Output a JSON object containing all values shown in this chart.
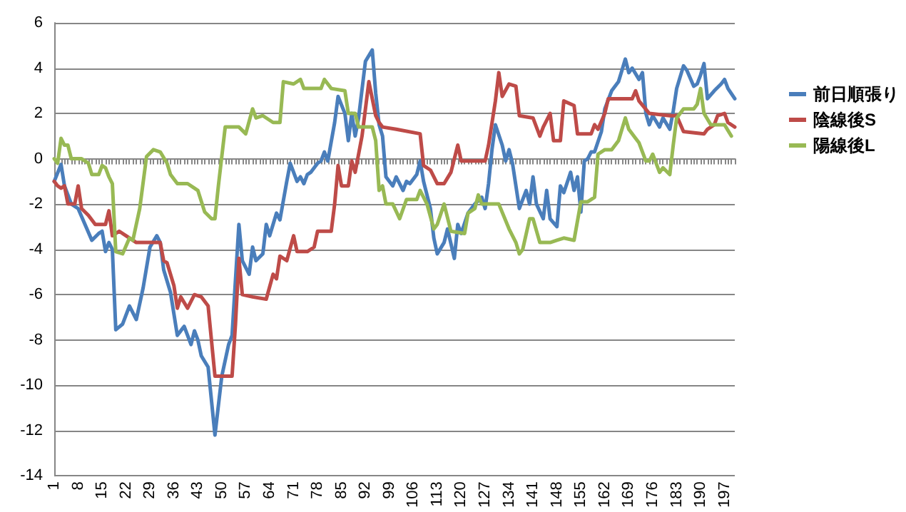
{
  "chart_data": {
    "type": "line",
    "xlim": [
      1,
      200
    ],
    "xticks": [
      1,
      8,
      15,
      22,
      29,
      36,
      43,
      50,
      57,
      64,
      71,
      78,
      85,
      92,
      99,
      106,
      113,
      120,
      127,
      134,
      141,
      148,
      155,
      162,
      169,
      176,
      183,
      190,
      197
    ],
    "ylim": [
      -14,
      6
    ],
    "yticks": [
      -14,
      -12,
      -10,
      -8,
      -6,
      -4,
      -2,
      0,
      2,
      4,
      6
    ],
    "grid": "y",
    "legend": "right",
    "marker": "none",
    "line_style": "solid",
    "series": [
      {
        "name": "前日順張り",
        "color": "#4a7ebb",
        "x": [
          1,
          3,
          4,
          6,
          8,
          10,
          12,
          14,
          15,
          16,
          17,
          18,
          19,
          21,
          23,
          25,
          27,
          29,
          31,
          32,
          33,
          35,
          37,
          39,
          41,
          42,
          43,
          44,
          46,
          48,
          50,
          52,
          53,
          55,
          56,
          58,
          59,
          60,
          62,
          63,
          64,
          66,
          67,
          69,
          70,
          72,
          73,
          74,
          75,
          76,
          78,
          79,
          80,
          81,
          83,
          84,
          86,
          87,
          88,
          89,
          90,
          92,
          94,
          95,
          96,
          97,
          98,
          100,
          101,
          103,
          104,
          105,
          107,
          108,
          109,
          111,
          112,
          113,
          115,
          116,
          118,
          119,
          120,
          122,
          124,
          126,
          127,
          128,
          129,
          130,
          132,
          133,
          134,
          135,
          137,
          139,
          140,
          141,
          142,
          144,
          145,
          146,
          148,
          149,
          150,
          152,
          153,
          154,
          155,
          156,
          157,
          158,
          159,
          161,
          162,
          164,
          166,
          167,
          168,
          169,
          170,
          172,
          173,
          174,
          175,
          176,
          178,
          179,
          181,
          182,
          183,
          185,
          186,
          188,
          189,
          190,
          191,
          192,
          194,
          196,
          197,
          198,
          200
        ],
        "values": [
          -1.0,
          -0.25,
          -1.2,
          -2.0,
          -2.2,
          -2.9,
          -3.6,
          -3.3,
          -3.2,
          -4.1,
          -3.7,
          -4.0,
          -7.55,
          -7.3,
          -6.5,
          -7.1,
          -5.7,
          -3.9,
          -3.4,
          -3.7,
          -4.9,
          -5.9,
          -7.8,
          -7.4,
          -8.2,
          -7.6,
          -8.0,
          -8.7,
          -9.2,
          -12.2,
          -9.6,
          -8.2,
          -7.8,
          -2.9,
          -4.5,
          -5.1,
          -3.9,
          -4.5,
          -4.2,
          -2.9,
          -3.4,
          -2.4,
          -2.7,
          -1.0,
          -0.2,
          -1.0,
          -0.8,
          -1.1,
          -0.7,
          -0.6,
          -0.2,
          -0.1,
          0.3,
          -0.1,
          1.6,
          2.75,
          2.0,
          0.8,
          2.0,
          1.0,
          1.8,
          4.3,
          4.8,
          2.9,
          1.5,
          1.0,
          -0.8,
          -1.2,
          -0.8,
          -1.4,
          -1.0,
          -1.1,
          -0.7,
          -0.1,
          -1.0,
          -2.2,
          -3.5,
          -4.2,
          -3.7,
          -3.1,
          -4.4,
          -2.9,
          -3.3,
          -2.4,
          -2.0,
          -1.7,
          -2.2,
          -1.1,
          0.4,
          1.5,
          0.6,
          -0.1,
          0.4,
          -0.2,
          -2.2,
          -1.4,
          -2.0,
          -0.8,
          -2.0,
          -2.65,
          -1.4,
          -2.65,
          -3.0,
          -1.2,
          -1.5,
          -0.6,
          -1.4,
          -0.8,
          -2.35,
          -0.1,
          0,
          0.3,
          0.3,
          1.2,
          2.2,
          3.0,
          3.4,
          3.9,
          4.4,
          3.8,
          4.0,
          3.5,
          3.8,
          2.0,
          1.5,
          1.9,
          1.4,
          1.8,
          1.3,
          2.1,
          3.1,
          4.1,
          3.9,
          3.2,
          3.3,
          3.7,
          4.2,
          2.65,
          3.0,
          3.3,
          3.5,
          3.1,
          2.65
        ]
      },
      {
        "name": "陰線後S",
        "color": "#be4b48",
        "x": [
          1,
          2,
          3,
          4,
          5,
          7,
          8,
          9,
          11,
          13,
          16,
          17,
          18,
          20,
          22,
          25,
          32,
          33,
          34,
          36,
          37,
          38,
          40,
          42,
          44,
          46,
          48,
          53,
          54,
          55,
          56,
          59,
          63,
          65,
          66,
          67,
          69,
          71,
          72,
          75,
          77,
          78,
          82,
          83,
          84,
          85,
          87,
          88,
          89,
          91,
          92,
          93,
          95,
          96,
          97,
          101,
          108,
          109,
          111,
          113,
          115,
          117,
          119,
          120,
          127,
          128,
          130,
          131,
          132,
          134,
          136,
          137,
          141,
          143,
          144,
          146,
          147,
          149,
          150,
          153,
          154,
          158,
          159,
          160,
          162,
          163,
          170,
          171,
          172,
          175,
          181,
          183,
          185,
          191,
          192,
          194,
          195,
          197,
          198,
          200
        ],
        "values": [
          -1.0,
          -1.2,
          -1.3,
          -1.2,
          -2.0,
          -2.0,
          -1.2,
          -2.2,
          -2.5,
          -2.9,
          -2.9,
          -2.3,
          -3.4,
          -3.2,
          -3.4,
          -3.7,
          -3.7,
          -4.5,
          -4.6,
          -5.6,
          -6.6,
          -6.1,
          -6.6,
          -6.0,
          -6.1,
          -6.5,
          -9.6,
          -9.6,
          -7.3,
          -4.4,
          -6.0,
          -6.1,
          -6.2,
          -5.1,
          -5.3,
          -4.3,
          -4.5,
          -3.4,
          -4.1,
          -4.1,
          -3.9,
          -3.2,
          -3.2,
          -2.0,
          -0.3,
          -1.2,
          -1.2,
          -0.1,
          -0.6,
          1.0,
          2.2,
          3.4,
          1.9,
          1.6,
          1.4,
          1.3,
          1.1,
          -0.3,
          -0.5,
          -1.1,
          -1.1,
          -0.6,
          0.6,
          -0.1,
          -0.1,
          0.6,
          2.55,
          3.8,
          2.75,
          3.3,
          3.2,
          1.9,
          1.8,
          1.0,
          1.4,
          2.0,
          0.8,
          0.8,
          2.55,
          2.35,
          1.1,
          1.1,
          1.5,
          1.3,
          2.0,
          2.65,
          2.65,
          3.0,
          2.55,
          2.0,
          1.9,
          1.9,
          1.2,
          1.1,
          1.3,
          1.5,
          1.9,
          2.0,
          1.6,
          1.4
        ]
      },
      {
        "name": "陽線後L",
        "color": "#98b954",
        "x": [
          1,
          2,
          3,
          4,
          5,
          6,
          9,
          11,
          12,
          14,
          15,
          16,
          17,
          18,
          19,
          21,
          23,
          24,
          26,
          28,
          30,
          32,
          34,
          35,
          37,
          40,
          42,
          43,
          45,
          47,
          48,
          49,
          51,
          55,
          57,
          59,
          60,
          62,
          65,
          67,
          68,
          71,
          73,
          74,
          79,
          80,
          82,
          86,
          87,
          89,
          90,
          94,
          95,
          96,
          97,
          98,
          100,
          102,
          104,
          107,
          108,
          110,
          112,
          113,
          115,
          117,
          121,
          122,
          124,
          125,
          126,
          131,
          134,
          136,
          137,
          138,
          140,
          141,
          143,
          146,
          148,
          150,
          153,
          155,
          157,
          159,
          160,
          162,
          164,
          166,
          168,
          169,
          171,
          172,
          174,
          175,
          176,
          178,
          179,
          181,
          182,
          183,
          185,
          188,
          189,
          190,
          191,
          193,
          195,
          197,
          199
        ],
        "values": [
          0,
          -0.2,
          0.9,
          0.6,
          0.6,
          0,
          0,
          -0.2,
          -0.7,
          -0.7,
          -0.3,
          -0.4,
          -0.8,
          -1.1,
          -4.1,
          -4.2,
          -3.5,
          -3.6,
          -2.2,
          0.1,
          0.4,
          0.3,
          -0.2,
          -0.7,
          -1.1,
          -1.1,
          -1.3,
          -1.4,
          -2.35,
          -2.65,
          -2.65,
          -1.2,
          1.4,
          1.4,
          1.1,
          2.2,
          1.8,
          1.9,
          1.6,
          1.6,
          3.4,
          3.3,
          3.5,
          3.1,
          3.1,
          3.5,
          3.1,
          3.0,
          2.0,
          2.0,
          1.4,
          1.4,
          0.8,
          -1.4,
          -1.2,
          -2.0,
          -2.0,
          -2.65,
          -1.8,
          -1.8,
          -1.4,
          -2.0,
          -3.1,
          -2.9,
          -2.0,
          -3.2,
          -3.3,
          -2.4,
          -2.2,
          -1.6,
          -2.0,
          -2.0,
          -3.1,
          -3.7,
          -4.2,
          -4.0,
          -2.65,
          -2.65,
          -3.7,
          -3.7,
          -3.6,
          -3.5,
          -3.6,
          -1.9,
          -1.9,
          -1.7,
          0.2,
          0.4,
          0.4,
          0.8,
          1.8,
          1.3,
          0.9,
          0.7,
          -0.1,
          -0.1,
          0.2,
          -0.6,
          -0.4,
          -0.7,
          0.6,
          1.8,
          2.2,
          2.2,
          2.4,
          3.1,
          2.0,
          1.5,
          1.5,
          1.5,
          1.0
        ]
      }
    ]
  }
}
